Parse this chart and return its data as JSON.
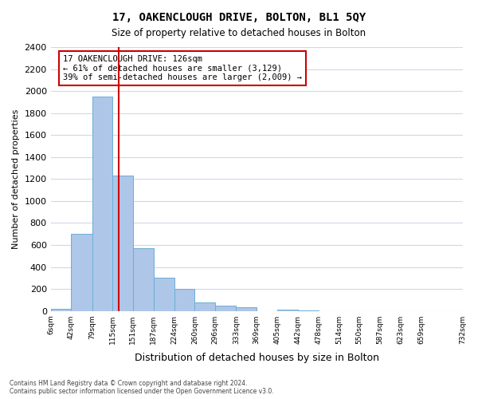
{
  "title": "17, OAKENCLOUGH DRIVE, BOLTON, BL1 5QY",
  "subtitle": "Size of property relative to detached houses in Bolton",
  "xlabel": "Distribution of detached houses by size in Bolton",
  "ylabel": "Number of detached properties",
  "bar_heights": [
    20,
    700,
    1950,
    1230,
    570,
    300,
    200,
    80,
    45,
    35,
    0,
    15,
    5,
    0,
    0,
    0,
    0,
    0,
    0
  ],
  "bin_edges": [
    6,
    42,
    79,
    115,
    151,
    187,
    224,
    260,
    296,
    333,
    369,
    405,
    442,
    478,
    514,
    550,
    587,
    623,
    659,
    732
  ],
  "tick_labels": [
    "6sqm",
    "42sqm",
    "79sqm",
    "115sqm",
    "151sqm",
    "187sqm",
    "224sqm",
    "260sqm",
    "296sqm",
    "333sqm",
    "369sqm",
    "405sqm",
    "442sqm",
    "478sqm",
    "514sqm",
    "550sqm",
    "587sqm",
    "623sqm",
    "659sqm",
    "732sqm"
  ],
  "bar_color": "#aec6e8",
  "bar_edgecolor": "#6aaed6",
  "ylim": [
    0,
    2400
  ],
  "yticks": [
    0,
    200,
    400,
    600,
    800,
    1000,
    1200,
    1400,
    1600,
    1800,
    2000,
    2200,
    2400
  ],
  "vline_x": 126,
  "vline_color": "#cc0000",
  "annotation_title": "17 OAKENCLOUGH DRIVE: 126sqm",
  "annotation_line2": "← 61% of detached houses are smaller (3,129)",
  "annotation_line3": "39% of semi-detached houses are larger (2,009) →",
  "annotation_box_color": "#ffffff",
  "annotation_box_edgecolor": "#cc0000",
  "footer_line1": "Contains HM Land Registry data © Crown copyright and database right 2024.",
  "footer_line2": "Contains public sector information licensed under the Open Government Licence v3.0.",
  "background_color": "#ffffff",
  "grid_color": "#d0d8e8"
}
